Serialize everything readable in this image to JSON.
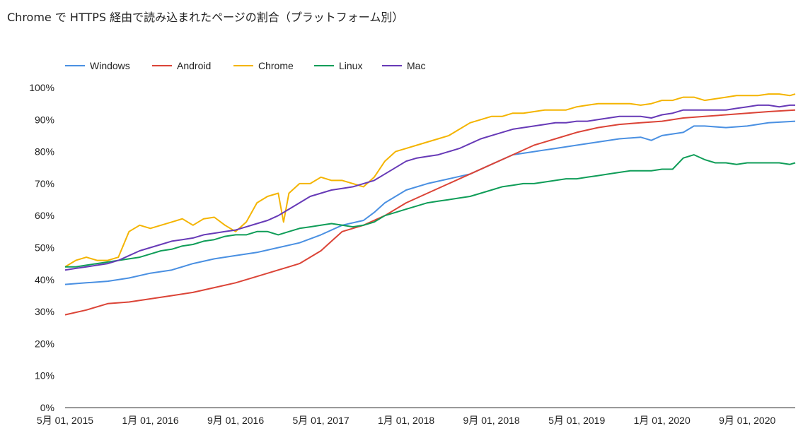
{
  "chart_data": {
    "type": "line",
    "title": "Chrome で HTTPS 経由で読み込まれたページの割合（プラットフォーム別）",
    "xlabel": "",
    "ylabel": "",
    "ylim": [
      0,
      100
    ],
    "y_ticks": [
      "0%",
      "10%",
      "20%",
      "30%",
      "40%",
      "50%",
      "60%",
      "70%",
      "80%",
      "90%",
      "100%"
    ],
    "x_ticks": [
      {
        "label": "5月 01, 2015",
        "month": 0
      },
      {
        "label": "1月 01, 2016",
        "month": 8
      },
      {
        "label": "9月 01, 2016",
        "month": 16
      },
      {
        "label": "5月 01, 2017",
        "month": 24
      },
      {
        "label": "1月 01, 2018",
        "month": 32
      },
      {
        "label": "9月 01, 2018",
        "month": 40
      },
      {
        "label": "5月 01, 2019",
        "month": 48
      },
      {
        "label": "1月 01, 2020",
        "month": 56
      },
      {
        "label": "9月 01, 2020",
        "month": 64
      }
    ],
    "x_range_months": [
      0,
      68.5
    ],
    "legend_position": "top-left",
    "grid": false,
    "series": [
      {
        "name": "Windows",
        "color": "#4a90e2",
        "points": [
          [
            0,
            38.5
          ],
          [
            2,
            39
          ],
          [
            4,
            39.5
          ],
          [
            6,
            40.5
          ],
          [
            8,
            42
          ],
          [
            10,
            43
          ],
          [
            12,
            45
          ],
          [
            14,
            46.5
          ],
          [
            16,
            47.5
          ],
          [
            18,
            48.5
          ],
          [
            20,
            50
          ],
          [
            22,
            51.5
          ],
          [
            24,
            54
          ],
          [
            26,
            57
          ],
          [
            28,
            58.5
          ],
          [
            29,
            61
          ],
          [
            30,
            64
          ],
          [
            32,
            68
          ],
          [
            34,
            70
          ],
          [
            36,
            71.5
          ],
          [
            38,
            73
          ],
          [
            40,
            76
          ],
          [
            42,
            79
          ],
          [
            44,
            80
          ],
          [
            46,
            81
          ],
          [
            48,
            82
          ],
          [
            50,
            83
          ],
          [
            52,
            84
          ],
          [
            54,
            84.5
          ],
          [
            55,
            83.5
          ],
          [
            56,
            85
          ],
          [
            58,
            86
          ],
          [
            59,
            88
          ],
          [
            60,
            88
          ],
          [
            62,
            87.5
          ],
          [
            64,
            88
          ],
          [
            66,
            89
          ],
          [
            68.5,
            89.5
          ]
        ]
      },
      {
        "name": "Android",
        "color": "#db4437",
        "points": [
          [
            0,
            29
          ],
          [
            2,
            30.5
          ],
          [
            4,
            32.5
          ],
          [
            6,
            33
          ],
          [
            8,
            34
          ],
          [
            10,
            35
          ],
          [
            12,
            36
          ],
          [
            14,
            37.5
          ],
          [
            16,
            39
          ],
          [
            18,
            41
          ],
          [
            20,
            43
          ],
          [
            21,
            44
          ],
          [
            22,
            45
          ],
          [
            24,
            49
          ],
          [
            25,
            52
          ],
          [
            26,
            55
          ],
          [
            28,
            57
          ],
          [
            30,
            60
          ],
          [
            32,
            64
          ],
          [
            34,
            67
          ],
          [
            36,
            70
          ],
          [
            38,
            73
          ],
          [
            40,
            76
          ],
          [
            42,
            79
          ],
          [
            44,
            82
          ],
          [
            46,
            84
          ],
          [
            48,
            86
          ],
          [
            50,
            87.5
          ],
          [
            52,
            88.5
          ],
          [
            54,
            89
          ],
          [
            56,
            89.5
          ],
          [
            58,
            90.5
          ],
          [
            60,
            91
          ],
          [
            62,
            91.5
          ],
          [
            64,
            92
          ],
          [
            66,
            92.5
          ],
          [
            68.5,
            93
          ]
        ]
      },
      {
        "name": "Chrome",
        "color": "#f4b400",
        "points": [
          [
            0,
            44
          ],
          [
            1,
            46
          ],
          [
            2,
            47
          ],
          [
            3,
            46
          ],
          [
            4,
            46
          ],
          [
            5,
            47
          ],
          [
            6,
            55
          ],
          [
            7,
            57
          ],
          [
            8,
            56
          ],
          [
            9,
            57
          ],
          [
            10,
            58
          ],
          [
            11,
            59
          ],
          [
            12,
            57
          ],
          [
            13,
            59
          ],
          [
            14,
            59.5
          ],
          [
            15,
            57
          ],
          [
            16,
            55
          ],
          [
            17,
            58
          ],
          [
            18,
            64
          ],
          [
            19,
            66
          ],
          [
            20,
            67
          ],
          [
            20.5,
            58
          ],
          [
            21,
            67
          ],
          [
            22,
            70
          ],
          [
            23,
            70
          ],
          [
            24,
            72
          ],
          [
            25,
            71
          ],
          [
            26,
            71
          ],
          [
            27,
            70
          ],
          [
            28,
            69
          ],
          [
            29,
            72
          ],
          [
            30,
            77
          ],
          [
            31,
            80
          ],
          [
            32,
            81
          ],
          [
            33,
            82
          ],
          [
            34,
            83
          ],
          [
            35,
            84
          ],
          [
            36,
            85
          ],
          [
            37,
            87
          ],
          [
            38,
            89
          ],
          [
            39,
            90
          ],
          [
            40,
            91
          ],
          [
            41,
            91
          ],
          [
            42,
            92
          ],
          [
            43,
            92
          ],
          [
            44,
            92.5
          ],
          [
            45,
            93
          ],
          [
            46,
            93
          ],
          [
            47,
            93
          ],
          [
            48,
            94
          ],
          [
            49,
            94.5
          ],
          [
            50,
            95
          ],
          [
            51,
            95
          ],
          [
            52,
            95
          ],
          [
            53,
            95
          ],
          [
            54,
            94.5
          ],
          [
            55,
            95
          ],
          [
            56,
            96
          ],
          [
            57,
            96
          ],
          [
            58,
            97
          ],
          [
            59,
            97
          ],
          [
            60,
            96
          ],
          [
            61,
            96.5
          ],
          [
            62,
            97
          ],
          [
            63,
            97.5
          ],
          [
            64,
            97.5
          ],
          [
            65,
            97.5
          ],
          [
            66,
            98
          ],
          [
            67,
            98
          ],
          [
            68,
            97.5
          ],
          [
            68.5,
            98
          ]
        ]
      },
      {
        "name": "Linux",
        "color": "#0f9d58",
        "points": [
          [
            0,
            44
          ],
          [
            1,
            44
          ],
          [
            2,
            44.5
          ],
          [
            3,
            45
          ],
          [
            4,
            45.5
          ],
          [
            5,
            46
          ],
          [
            6,
            46.5
          ],
          [
            7,
            47
          ],
          [
            8,
            48
          ],
          [
            9,
            49
          ],
          [
            10,
            49.5
          ],
          [
            11,
            50.5
          ],
          [
            12,
            51
          ],
          [
            13,
            52
          ],
          [
            14,
            52.5
          ],
          [
            15,
            53.5
          ],
          [
            16,
            54
          ],
          [
            17,
            54
          ],
          [
            18,
            55
          ],
          [
            19,
            55
          ],
          [
            20,
            54
          ],
          [
            21,
            55
          ],
          [
            22,
            56
          ],
          [
            23,
            56.5
          ],
          [
            24,
            57
          ],
          [
            25,
            57.5
          ],
          [
            26,
            57
          ],
          [
            27,
            56.5
          ],
          [
            28,
            57
          ],
          [
            29,
            58
          ],
          [
            30,
            60
          ],
          [
            31,
            61
          ],
          [
            32,
            62
          ],
          [
            33,
            63
          ],
          [
            34,
            64
          ],
          [
            35,
            64.5
          ],
          [
            36,
            65
          ],
          [
            37,
            65.5
          ],
          [
            38,
            66
          ],
          [
            39,
            67
          ],
          [
            40,
            68
          ],
          [
            41,
            69
          ],
          [
            42,
            69.5
          ],
          [
            43,
            70
          ],
          [
            44,
            70
          ],
          [
            45,
            70.5
          ],
          [
            46,
            71
          ],
          [
            47,
            71.5
          ],
          [
            48,
            71.5
          ],
          [
            49,
            72
          ],
          [
            50,
            72.5
          ],
          [
            51,
            73
          ],
          [
            52,
            73.5
          ],
          [
            53,
            74
          ],
          [
            54,
            74
          ],
          [
            55,
            74
          ],
          [
            56,
            74.5
          ],
          [
            57,
            74.5
          ],
          [
            58,
            78
          ],
          [
            59,
            79
          ],
          [
            60,
            77.5
          ],
          [
            61,
            76.5
          ],
          [
            62,
            76.5
          ],
          [
            63,
            76
          ],
          [
            64,
            76.5
          ],
          [
            65,
            76.5
          ],
          [
            66,
            76.5
          ],
          [
            67,
            76.5
          ],
          [
            68,
            76
          ],
          [
            68.5,
            76.5
          ]
        ]
      },
      {
        "name": "Mac",
        "color": "#673ab7",
        "points": [
          [
            0,
            43
          ],
          [
            1,
            43.5
          ],
          [
            2,
            44
          ],
          [
            3,
            44.5
          ],
          [
            4,
            45
          ],
          [
            5,
            46
          ],
          [
            6,
            47.5
          ],
          [
            7,
            49
          ],
          [
            8,
            50
          ],
          [
            9,
            51
          ],
          [
            10,
            52
          ],
          [
            11,
            52.5
          ],
          [
            12,
            53
          ],
          [
            13,
            54
          ],
          [
            14,
            54.5
          ],
          [
            15,
            55
          ],
          [
            16,
            55.5
          ],
          [
            17,
            56.5
          ],
          [
            18,
            57.5
          ],
          [
            19,
            58.5
          ],
          [
            20,
            60
          ],
          [
            21,
            62
          ],
          [
            22,
            64
          ],
          [
            23,
            66
          ],
          [
            24,
            67
          ],
          [
            25,
            68
          ],
          [
            26,
            68.5
          ],
          [
            27,
            69
          ],
          [
            28,
            70
          ],
          [
            29,
            71
          ],
          [
            30,
            73
          ],
          [
            31,
            75
          ],
          [
            32,
            77
          ],
          [
            33,
            78
          ],
          [
            34,
            78.5
          ],
          [
            35,
            79
          ],
          [
            36,
            80
          ],
          [
            37,
            81
          ],
          [
            38,
            82.5
          ],
          [
            39,
            84
          ],
          [
            40,
            85
          ],
          [
            41,
            86
          ],
          [
            42,
            87
          ],
          [
            43,
            87.5
          ],
          [
            44,
            88
          ],
          [
            45,
            88.5
          ],
          [
            46,
            89
          ],
          [
            47,
            89
          ],
          [
            48,
            89.5
          ],
          [
            49,
            89.5
          ],
          [
            50,
            90
          ],
          [
            51,
            90.5
          ],
          [
            52,
            91
          ],
          [
            53,
            91
          ],
          [
            54,
            91
          ],
          [
            55,
            90.5
          ],
          [
            56,
            91.5
          ],
          [
            57,
            92
          ],
          [
            58,
            93
          ],
          [
            59,
            93
          ],
          [
            60,
            93
          ],
          [
            61,
            93
          ],
          [
            62,
            93
          ],
          [
            63,
            93.5
          ],
          [
            64,
            94
          ],
          [
            65,
            94.5
          ],
          [
            66,
            94.5
          ],
          [
            67,
            94
          ],
          [
            68,
            94.5
          ],
          [
            68.5,
            94.5
          ]
        ]
      }
    ]
  }
}
